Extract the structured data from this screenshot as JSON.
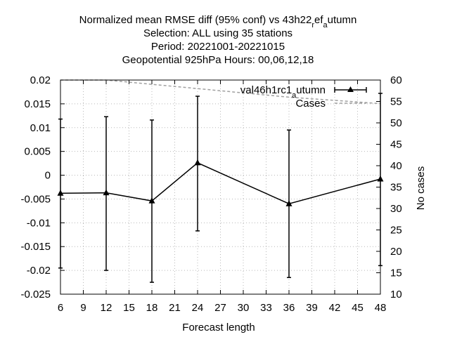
{
  "chart_data": {
    "type": "line",
    "title_lines": [
      "Normalized mean RMSE diff (95% conf) vs 43h22_ref_autumn",
      "Selection: ALL using    35 stations",
      "Period: 20221001-20221015",
      "Geopotential 925hPa   Hours:  00,06,12,18"
    ],
    "xlabel": "Forecast length",
    "ylabel": "",
    "y2label": "No cases",
    "xlim": [
      6,
      48
    ],
    "ylim": [
      -0.025,
      0.02
    ],
    "y2lim": [
      10,
      60
    ],
    "x_ticks": [
      "6",
      "9",
      "12",
      "15",
      "18",
      "21",
      "24",
      "27",
      "30",
      "33",
      "36",
      "39",
      "42",
      "45",
      "48"
    ],
    "y_ticks": [
      "0.02",
      "0.015",
      "0.01",
      "0.005",
      "0",
      "-0.005",
      "-0.01",
      "-0.015",
      "-0.02",
      "-0.025"
    ],
    "y2_ticks": [
      "60",
      "55",
      "50",
      "45",
      "40",
      "35",
      "30",
      "25",
      "20",
      "15",
      "10"
    ],
    "grid": true,
    "legend_position": "top-right",
    "series": [
      {
        "name": "val46h1rc1_autumn",
        "axis": "y",
        "color": "#000000",
        "marker": "triangle",
        "x": [
          6,
          12,
          18,
          24,
          36,
          48
        ],
        "y": [
          -0.0038,
          -0.0037,
          -0.0054,
          0.0026,
          -0.006,
          -0.0008
        ],
        "y_low": [
          -0.0195,
          -0.02,
          -0.0225,
          -0.0117,
          -0.0215,
          -0.019
        ],
        "y_high": [
          0.0118,
          0.0123,
          0.0116,
          0.0166,
          0.0095,
          0.0172
        ]
      },
      {
        "name": "Cases",
        "axis": "y2",
        "color": "#a0a0a0",
        "style": "dashed",
        "x": [
          6,
          12,
          18,
          24,
          36,
          48
        ],
        "y": [
          60,
          60,
          59,
          58,
          56,
          54.5
        ]
      }
    ]
  }
}
